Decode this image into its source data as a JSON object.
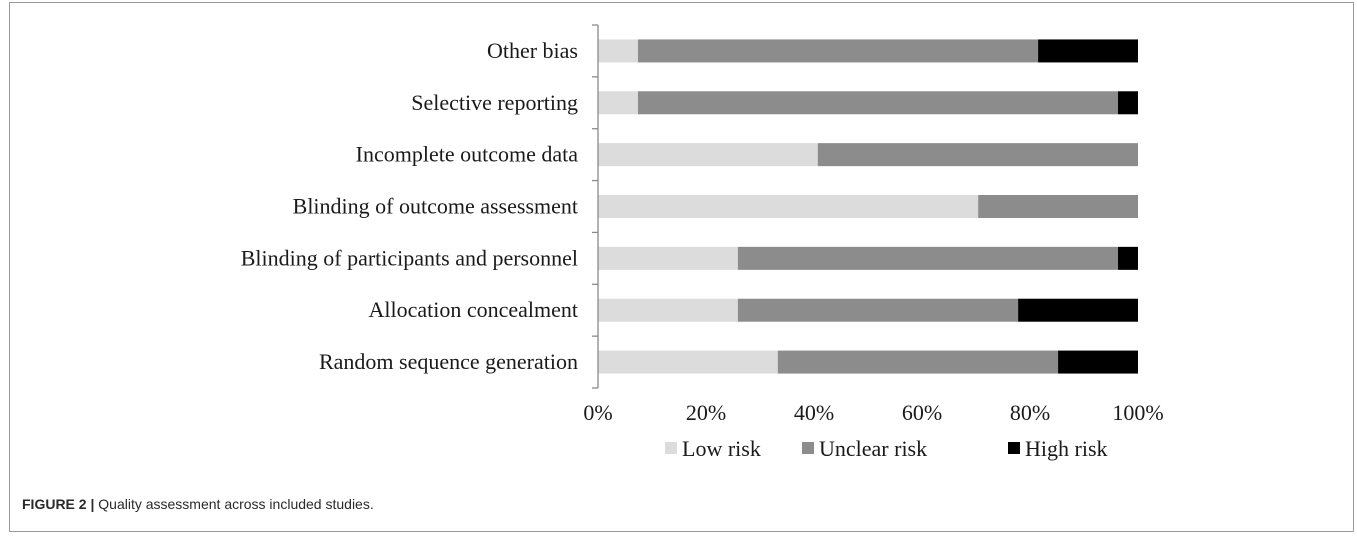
{
  "chart_data": {
    "type": "bar",
    "orientation": "horizontal",
    "stacked": true,
    "categories": [
      "Random sequence generation",
      "Allocation concealment",
      "Blinding of participants and personnel",
      "Blinding of outcome assessment",
      "Incomplete outcome data",
      "Selective reporting",
      "Other bias"
    ],
    "series": [
      {
        "name": "Low risk",
        "color": "#dcdcdc",
        "values": [
          33.3,
          25.9,
          25.9,
          70.4,
          40.7,
          7.4,
          7.4
        ]
      },
      {
        "name": "Unclear risk",
        "color": "#8c8c8c",
        "values": [
          51.9,
          51.9,
          70.4,
          29.6,
          59.3,
          88.9,
          74.1
        ]
      },
      {
        "name": "High risk",
        "color": "#000000",
        "values": [
          14.8,
          22.2,
          3.7,
          0,
          0,
          3.7,
          18.5
        ]
      }
    ],
    "xlim": [
      0,
      100
    ],
    "xticks": [
      "0%",
      "20%",
      "40%",
      "60%",
      "80%",
      "100%"
    ],
    "grid": false,
    "legend_position": "bottom"
  },
  "caption": {
    "label": "FIGURE 2 |",
    "text": " Quality assessment across included studies."
  }
}
